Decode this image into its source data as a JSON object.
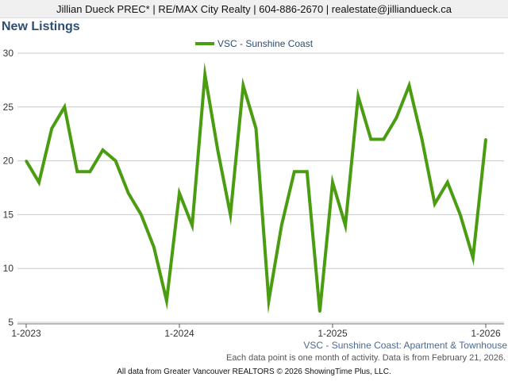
{
  "header": {
    "text": "Jillian Dueck PREC* | RE/MAX City Realty | 604-886-2670 | realestate@jilliandueck.ca"
  },
  "chart_data": {
    "type": "line",
    "title": "New Listings",
    "subtitle": "VSC - Sunshine Coast: Apartment & Townhouse",
    "note": "Each data point is one month of activity. Data is from February 21, 2026.",
    "footer": "All data from Greater Vancouver REALTORS © 2026 ShowingTime Plus, LLC.",
    "xlabel": "",
    "ylabel": "",
    "ylim": [
      5,
      30
    ],
    "yticks": [
      5,
      10,
      15,
      20,
      25,
      30
    ],
    "grid": true,
    "legend": "top-center",
    "xticks": [
      {
        "index": 0,
        "label": "1-2023"
      },
      {
        "index": 12,
        "label": "1-2024"
      },
      {
        "index": 24,
        "label": "1-2025"
      },
      {
        "index": 36,
        "label": "1-2026"
      }
    ],
    "categories": [
      "2023-01",
      "2023-02",
      "2023-03",
      "2023-04",
      "2023-05",
      "2023-06",
      "2023-07",
      "2023-08",
      "2023-09",
      "2023-10",
      "2023-11",
      "2023-12",
      "2024-01",
      "2024-02",
      "2024-03",
      "2024-04",
      "2024-05",
      "2024-06",
      "2024-07",
      "2024-08",
      "2024-09",
      "2024-10",
      "2024-11",
      "2024-12",
      "2025-01",
      "2025-02",
      "2025-03",
      "2025-04",
      "2025-05",
      "2025-06",
      "2025-07",
      "2025-08",
      "2025-09",
      "2025-10",
      "2025-11",
      "2025-12",
      "2026-01"
    ],
    "series": [
      {
        "name": "VSC - Sunshine Coast",
        "color": "#4a9c11",
        "values": [
          20,
          18,
          23,
          25,
          19,
          19,
          21,
          20,
          17,
          15,
          12,
          7,
          17,
          14,
          28,
          21,
          15,
          27,
          23,
          7,
          14,
          19,
          19,
          6,
          18,
          14,
          26,
          22,
          22,
          24,
          27,
          22,
          16,
          18,
          15,
          11,
          22
        ]
      }
    ]
  }
}
